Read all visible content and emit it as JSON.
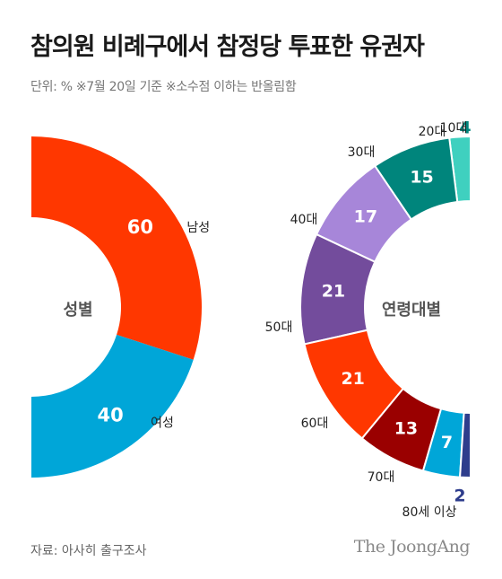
{
  "header": {
    "title": "참의원 비례구에서 참정당 투표한 유권자",
    "subtitle": "단위: %  ※7월 20일 기준  ※소수점 이하는 반올림함"
  },
  "footer": {
    "source": "자료: 아사히 출구조사",
    "brand": "The JoongAng"
  },
  "chart_data": [
    {
      "type": "pie",
      "title": "성별",
      "unit": "%",
      "categories": [
        "남성",
        "여성"
      ],
      "values": [
        60,
        40
      ],
      "colors": [
        "#ff3700",
        "#00a6d8"
      ]
    },
    {
      "type": "pie",
      "title": "연령대별",
      "unit": "%",
      "categories": [
        "10대",
        "20대",
        "30대",
        "40대",
        "50대",
        "60대",
        "70대",
        "80세 이상"
      ],
      "values": [
        4,
        15,
        17,
        21,
        21,
        13,
        7,
        2
      ],
      "colors": [
        "#3fd0bf",
        "#00857c",
        "#a786d9",
        "#734c9c",
        "#ff3700",
        "#9a0000",
        "#00a6d8",
        "#2e3d8c"
      ]
    }
  ]
}
